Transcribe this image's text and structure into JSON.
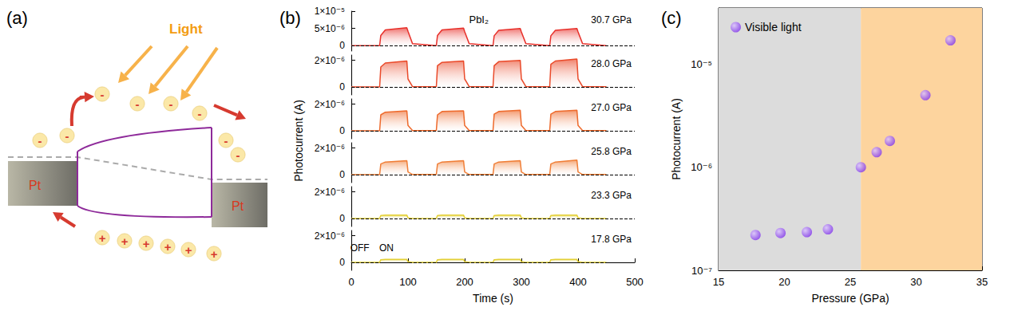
{
  "chart_data": [
    {
      "type": "diagram",
      "panel": "(a)",
      "labels": {
        "light": "Light",
        "electrode_left": "Pt",
        "electrode_right": "Pt",
        "electron": "-",
        "hole": "+"
      }
    },
    {
      "type": "line",
      "panel": "(b)",
      "title": "PbI₂",
      "x_label": "Time (s)",
      "y_label": "Photocurrent (A)",
      "annotations": [
        "OFF",
        "ON"
      ],
      "xlim": [
        0,
        500
      ],
      "xticks": [
        0,
        100,
        200,
        300,
        400,
        500
      ],
      "grid": false,
      "x": [
        0,
        50,
        52,
        60,
        98,
        100,
        108,
        150,
        152,
        160,
        198,
        200,
        208,
        250,
        252,
        260,
        298,
        300,
        308,
        350,
        352,
        360,
        398,
        400,
        408,
        450
      ],
      "series": [
        {
          "name": "30.7 GPa",
          "color": "#e8302a",
          "ylim": [
            -1.5e-06,
            1e-05
          ],
          "yticks": [
            0,
            {
              "value": 5e-06,
              "label": "5×10⁻⁶"
            },
            {
              "value": 1e-05,
              "label": "1×10⁻⁵"
            }
          ],
          "values": [
            5e-08,
            5e-08,
            3e-06,
            4.6e-06,
            5.2e-06,
            4.2e-06,
            6e-07,
            5e-08,
            3e-06,
            4.6e-06,
            5.1e-06,
            4.1e-06,
            6e-07,
            5e-08,
            2.9e-06,
            4.5e-06,
            5e-06,
            4e-06,
            6e-07,
            5e-08,
            2.9e-06,
            4.5e-06,
            5e-06,
            4e-06,
            6e-07,
            5e-08
          ]
        },
        {
          "name": "28.0 GPa",
          "color": "#ea4a2a",
          "ylim": [
            -6e-07,
            2.4e-06
          ],
          "yticks": [
            0,
            {
              "value": 2e-06,
              "label": "2×10⁻⁶"
            }
          ],
          "values": [
            0,
            0,
            1.5e-06,
            1.8e-06,
            1.95e-06,
            6e-07,
            2e-08,
            2e-08,
            1.6e-06,
            1.85e-06,
            1.95e-06,
            6e-07,
            2e-08,
            2e-08,
            1.6e-06,
            1.9e-06,
            2e-06,
            6e-07,
            2e-08,
            2e-08,
            1.7e-06,
            1.95e-06,
            2.1e-06,
            6e-07,
            2e-08,
            2e-08
          ]
        },
        {
          "name": "27.0 GPa",
          "color": "#ee6a2c",
          "ylim": [
            -6e-07,
            2.4e-06
          ],
          "yticks": [
            0,
            {
              "value": 2e-06,
              "label": "2×10⁻⁶"
            }
          ],
          "values": [
            0,
            0,
            1.2e-06,
            1.4e-06,
            1.5e-06,
            4e-07,
            2e-08,
            2e-08,
            1.2e-06,
            1.45e-06,
            1.5e-06,
            4e-07,
            2e-08,
            2e-08,
            1.25e-06,
            1.45e-06,
            1.55e-06,
            4e-07,
            2e-08,
            2e-08,
            1.25e-06,
            1.45e-06,
            1.55e-06,
            4e-07,
            2e-08,
            2e-08
          ]
        },
        {
          "name": "25.8 GPa",
          "color": "#f07e36",
          "ylim": [
            -6e-07,
            2.4e-06
          ],
          "yticks": [
            0,
            {
              "value": 2e-06,
              "label": "2×10⁻⁶"
            }
          ],
          "values": [
            0,
            0,
            8e-07,
            9.5e-07,
            1.05e-06,
            2e-07,
            1e-08,
            1e-08,
            8e-07,
            9.5e-07,
            1.05e-06,
            2e-07,
            1e-08,
            1e-08,
            8e-07,
            9.5e-07,
            1.05e-06,
            2e-07,
            1e-08,
            1e-08,
            8e-07,
            9.5e-07,
            1.1e-06,
            2e-07,
            1e-08,
            1e-08
          ]
        },
        {
          "name": "23.3 GPa",
          "color": "#e3cf35",
          "ylim": [
            -6e-07,
            2.4e-06
          ],
          "yticks": [
            0,
            {
              "value": 2e-06,
              "label": "2×10⁻⁶"
            }
          ],
          "values": [
            0,
            0,
            2.2e-07,
            2.5e-07,
            2.5e-07,
            5e-08,
            0,
            0,
            2.2e-07,
            2.5e-07,
            2.5e-07,
            5e-08,
            0,
            0,
            2.2e-07,
            2.5e-07,
            2.5e-07,
            5e-08,
            0,
            0,
            2.2e-07,
            2.5e-07,
            2.5e-07,
            5e-08,
            0,
            0
          ]
        },
        {
          "name": "17.8 GPa",
          "color": "#e3cf35",
          "ylim": [
            -6e-07,
            2.4e-06
          ],
          "yticks": [
            0,
            {
              "value": 2e-06,
              "label": "2×10⁻⁶"
            }
          ],
          "values": [
            0,
            0,
            2e-07,
            2.2e-07,
            2.2e-07,
            5e-08,
            0,
            0,
            2e-07,
            2.2e-07,
            2.2e-07,
            5e-08,
            0,
            0,
            2e-07,
            2.2e-07,
            2.2e-07,
            5e-08,
            0,
            0,
            2e-07,
            2.2e-07,
            2.2e-07,
            5e-08,
            0,
            0
          ]
        }
      ]
    },
    {
      "type": "scatter",
      "panel": "(c)",
      "x_label": "Pressure (GPa)",
      "y_label": "Photocurrent (A)",
      "xlim": [
        15,
        35
      ],
      "xticks": [
        15,
        20,
        25,
        30,
        35
      ],
      "log": "y",
      "ylim": [
        1e-07,
        3.5e-05
      ],
      "yticks": [
        {
          "value": 1e-07,
          "label": "10⁻⁷"
        },
        {
          "value": 1e-06,
          "label": "10⁻⁶"
        },
        {
          "value": 1e-05,
          "label": "10⁻⁵"
        }
      ],
      "grid": false,
      "legend": "upper left",
      "regions": [
        {
          "from": 15,
          "to": 25.8,
          "color": "#dcdcdc"
        },
        {
          "from": 25.8,
          "to": 35,
          "color": "#fdd49e"
        }
      ],
      "series": [
        {
          "name": "Visible light",
          "color": "#7a2bea",
          "marker": "circle",
          "x": [
            17.8,
            19.7,
            21.7,
            23.3,
            25.8,
            27.0,
            28.0,
            30.7,
            32.6
          ],
          "values": [
            2.2e-07,
            2.3e-07,
            2.35e-07,
            2.5e-07,
            1e-06,
            1.4e-06,
            1.8e-06,
            5e-06,
            1.7e-05
          ]
        }
      ]
    }
  ]
}
